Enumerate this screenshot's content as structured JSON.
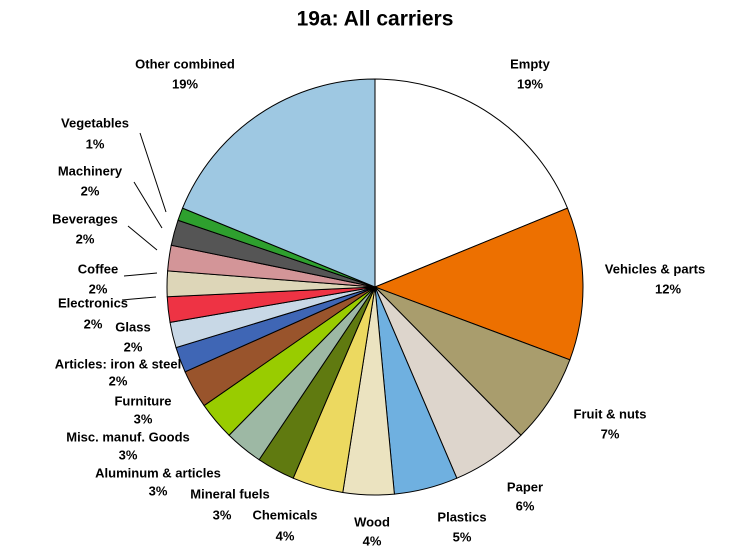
{
  "chart_data": {
    "type": "pie",
    "title": "19a: All carriers",
    "categories": [
      "Empty",
      "Vehicles & parts",
      "Fruit & nuts",
      "Paper",
      "Plastics",
      "Wood",
      "Chemicals",
      "Mineral fuels",
      "Aluminum & articles",
      "Misc. manuf. Goods",
      "Furniture",
      "Articles: iron & steel",
      "Glass",
      "Electronics",
      "Coffee",
      "Beverages",
      "Machinery",
      "Vegetables",
      "Other combined"
    ],
    "values": [
      19,
      12,
      7,
      6,
      5,
      4,
      4,
      3,
      3,
      3,
      3,
      2,
      2,
      2,
      2,
      2,
      2,
      1,
      19
    ],
    "value_labels": [
      "19%",
      "12%",
      "7%",
      "6%",
      "5%",
      "4%",
      "4%",
      "3%",
      "3%",
      "3%",
      "3%",
      "2%",
      "2%",
      "2%",
      "2%",
      "2%",
      "2%",
      "1%",
      "19%"
    ],
    "colors": [
      "#ffffff",
      "#ed7000",
      "#a99d6d",
      "#ddd5cc",
      "#6fb0e0",
      "#ebe3c0",
      "#ecd960",
      "#607a10",
      "#9db8a4",
      "#99cc00",
      "#99542c",
      "#3f66b5",
      "#c8d8e6",
      "#ee3344",
      "#ddd6b8",
      "#d39598",
      "#555555",
      "#2ea02e",
      "#9ec8e2"
    ]
  }
}
